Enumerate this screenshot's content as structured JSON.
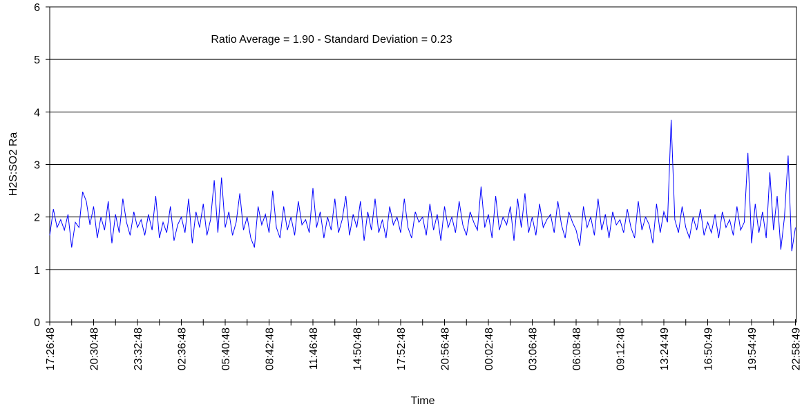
{
  "chart_data": {
    "type": "line",
    "annotation": "Ratio Average = 1.90 - Standard Deviation = 0.23",
    "y_label": "H2S:SO2 Ra",
    "x_label": "Time",
    "color": "#0000ff",
    "ylim": [
      0,
      6
    ],
    "yticks": [
      0,
      1,
      2,
      3,
      4,
      5,
      6
    ],
    "grid": true,
    "categories": [
      "17:26:48",
      null,
      null,
      null,
      null,
      null,
      null,
      null,
      null,
      null,
      null,
      null,
      "20:30:48",
      null,
      null,
      null,
      null,
      null,
      null,
      null,
      null,
      null,
      null,
      null,
      "23:32:48",
      null,
      null,
      null,
      null,
      null,
      null,
      null,
      null,
      null,
      null,
      null,
      "02:36:48",
      null,
      null,
      null,
      null,
      null,
      null,
      null,
      null,
      null,
      null,
      null,
      "05:40:48",
      null,
      null,
      null,
      null,
      null,
      null,
      null,
      null,
      null,
      null,
      null,
      "08:42:48",
      null,
      null,
      null,
      null,
      null,
      null,
      null,
      null,
      null,
      null,
      null,
      "11:46:48",
      null,
      null,
      null,
      null,
      null,
      null,
      null,
      null,
      null,
      null,
      null,
      "14:50:48",
      null,
      null,
      null,
      null,
      null,
      null,
      null,
      null,
      null,
      null,
      null,
      "17:52:48",
      null,
      null,
      null,
      null,
      null,
      null,
      null,
      null,
      null,
      null,
      null,
      "20:56:48",
      null,
      null,
      null,
      null,
      null,
      null,
      null,
      null,
      null,
      null,
      null,
      "00:02:48",
      null,
      null,
      null,
      null,
      null,
      null,
      null,
      null,
      null,
      null,
      null,
      "03:06:48",
      null,
      null,
      null,
      null,
      null,
      null,
      null,
      null,
      null,
      null,
      null,
      "06:08:48",
      null,
      null,
      null,
      null,
      null,
      null,
      null,
      null,
      null,
      null,
      null,
      "09:12:48",
      null,
      null,
      null,
      null,
      null,
      null,
      null,
      null,
      null,
      null,
      null,
      "13:24:49",
      null,
      null,
      null,
      null,
      null,
      null,
      null,
      null,
      null,
      null,
      null,
      "16:50:49",
      null,
      null,
      null,
      null,
      null,
      null,
      null,
      null,
      null,
      null,
      null,
      "19:54:49",
      null,
      null,
      null,
      null,
      null,
      null,
      null,
      null,
      null,
      null,
      null,
      "22:58:49"
    ],
    "values": [
      1.65,
      2.15,
      1.8,
      1.95,
      1.75,
      2.05,
      1.42,
      1.9,
      1.8,
      2.48,
      2.3,
      1.85,
      2.2,
      1.6,
      2.0,
      1.75,
      2.3,
      1.5,
      2.05,
      1.7,
      2.35,
      1.9,
      1.65,
      2.1,
      1.8,
      1.95,
      1.65,
      2.05,
      1.75,
      2.4,
      1.6,
      1.9,
      1.7,
      2.2,
      1.55,
      1.85,
      2.0,
      1.7,
      2.35,
      1.5,
      2.1,
      1.8,
      2.25,
      1.65,
      1.95,
      2.7,
      1.7,
      2.75,
      1.8,
      2.1,
      1.65,
      1.9,
      2.45,
      1.75,
      2.0,
      1.6,
      1.42,
      2.2,
      1.85,
      2.05,
      1.7,
      2.5,
      1.8,
      1.6,
      2.2,
      1.75,
      2.0,
      1.65,
      2.3,
      1.85,
      1.95,
      1.7,
      2.55,
      1.8,
      2.1,
      1.6,
      2.0,
      1.75,
      2.35,
      1.7,
      1.95,
      2.4,
      1.65,
      2.05,
      1.8,
      2.3,
      1.55,
      2.1,
      1.75,
      2.35,
      1.7,
      1.95,
      1.6,
      2.2,
      1.85,
      2.0,
      1.7,
      2.35,
      1.8,
      1.6,
      2.1,
      1.9,
      2.0,
      1.65,
      2.25,
      1.75,
      2.05,
      1.55,
      2.2,
      1.8,
      2.0,
      1.7,
      2.3,
      1.85,
      1.65,
      2.1,
      1.9,
      1.75,
      2.58,
      1.8,
      2.05,
      1.6,
      2.4,
      1.75,
      2.0,
      1.85,
      2.2,
      1.55,
      2.35,
      1.8,
      2.45,
      1.7,
      2.0,
      1.65,
      2.25,
      1.8,
      1.95,
      2.05,
      1.7,
      2.3,
      1.85,
      1.6,
      2.1,
      1.9,
      1.75,
      1.45,
      2.2,
      1.8,
      2.0,
      1.65,
      2.35,
      1.75,
      2.05,
      1.6,
      2.1,
      1.85,
      1.95,
      1.7,
      2.15,
      1.8,
      1.6,
      2.3,
      1.75,
      2.0,
      1.85,
      1.5,
      2.25,
      1.7,
      2.1,
      1.9,
      3.85,
      1.95,
      1.7,
      2.2,
      1.8,
      1.6,
      2.0,
      1.75,
      2.15,
      1.65,
      1.9,
      1.7,
      2.05,
      1.6,
      2.1,
      1.8,
      1.95,
      1.65,
      2.2,
      1.75,
      1.9,
      3.22,
      1.5,
      2.25,
      1.7,
      2.1,
      1.6,
      2.85,
      1.75,
      2.4,
      1.38,
      2.0,
      3.17,
      1.35,
      1.8
    ]
  }
}
